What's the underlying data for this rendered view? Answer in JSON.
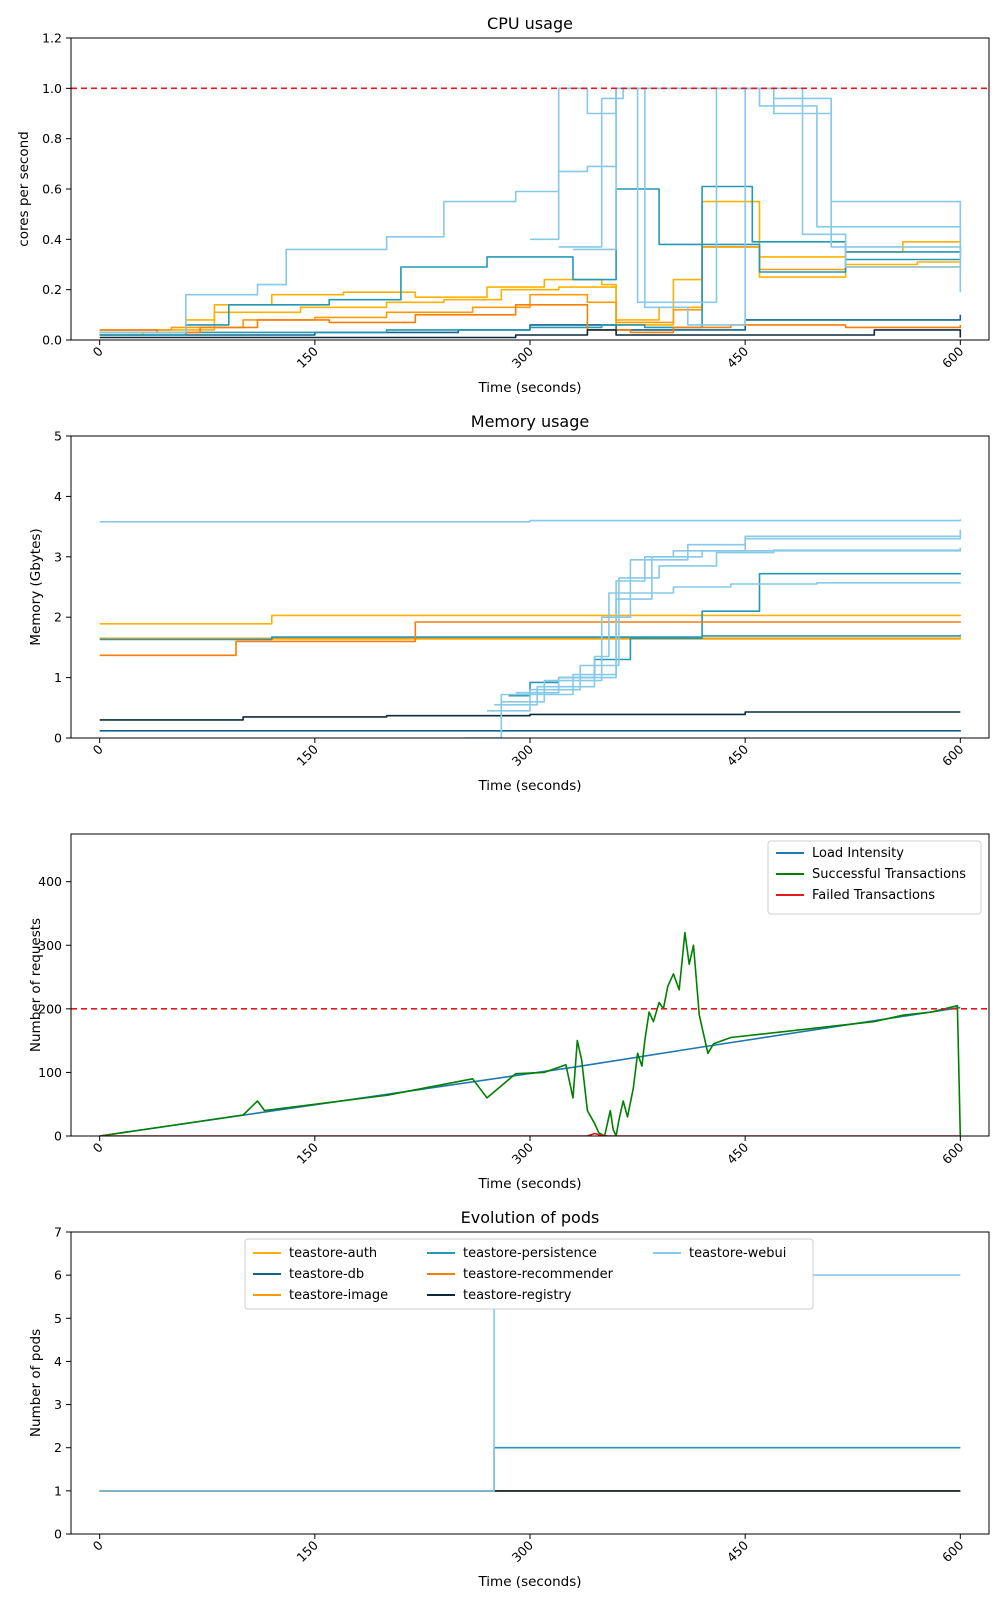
{
  "colors": {
    "teastore-auth": "#ffb000",
    "teastore-db": "#11648a",
    "teastore-image": "#ff9a0a",
    "teastore-persistence": "#2399b5",
    "teastore-recommender": "#fb7d07",
    "teastore-registry": "#0b2a3d",
    "teastore-webui": "#86c9e8",
    "threshold": "#e31a1c",
    "load": "#1f77b4",
    "success": "#008000",
    "failed": "#e31a1c"
  },
  "chart_data": [
    {
      "id": "cpu",
      "type": "line",
      "title": "CPU usage",
      "xlabel": "Time (seconds)",
      "ylabel": "cores per second",
      "xlim": [
        -20,
        620
      ],
      "ylim": [
        0,
        1.2
      ],
      "xticks": [
        0,
        150,
        300,
        450,
        600
      ],
      "xtick_labels": [
        "0",
        "150",
        "300",
        "450",
        "600"
      ],
      "yticks": [
        0,
        0.2,
        0.4,
        0.6,
        0.8,
        1.0,
        1.2
      ],
      "ytick_labels": [
        "0.0",
        "0.2",
        "0.4",
        "0.6",
        "0.8",
        "1.0",
        "1.2"
      ],
      "hline": 1.0,
      "step": true,
      "series": [
        {
          "name": "teastore-auth",
          "x": [
            0,
            30,
            60,
            80,
            120,
            170,
            220,
            270,
            310,
            350,
            360,
            400,
            420,
            460,
            520,
            560,
            600
          ],
          "y": [
            0.02,
            0.03,
            0.08,
            0.14,
            0.18,
            0.19,
            0.17,
            0.21,
            0.24,
            0.22,
            0.06,
            0.24,
            0.55,
            0.33,
            0.35,
            0.39,
            0.41
          ]
        },
        {
          "name": "teastore-auth",
          "x": [
            0,
            40,
            80,
            140,
            200,
            240,
            280,
            320,
            360,
            390,
            420,
            460,
            520,
            570,
            600
          ],
          "y": [
            0.03,
            0.04,
            0.11,
            0.13,
            0.15,
            0.16,
            0.2,
            0.21,
            0.08,
            0.13,
            0.37,
            0.25,
            0.3,
            0.31,
            0.33
          ]
        },
        {
          "name": "teastore-db",
          "x": [
            0,
            60,
            150,
            250,
            300,
            360,
            450,
            600
          ],
          "y": [
            0.02,
            0.02,
            0.03,
            0.04,
            0.06,
            0.04,
            0.08,
            0.1
          ]
        },
        {
          "name": "teastore-image",
          "x": [
            0,
            50,
            100,
            150,
            200,
            260,
            300,
            340,
            360,
            400,
            420,
            460,
            520,
            600
          ],
          "y": [
            0.04,
            0.05,
            0.08,
            0.09,
            0.11,
            0.13,
            0.18,
            0.15,
            0.07,
            0.12,
            0.37,
            0.28,
            0.29,
            0.3
          ]
        },
        {
          "name": "teastore-persistence",
          "x": [
            0,
            60,
            90,
            160,
            210,
            270,
            330,
            360,
            390,
            420,
            455,
            520,
            600
          ],
          "y": [
            0.02,
            0.06,
            0.14,
            0.16,
            0.29,
            0.33,
            0.24,
            0.6,
            0.38,
            0.61,
            0.39,
            0.35,
            0.37
          ]
        },
        {
          "name": "teastore-persistence",
          "x": [
            0,
            100,
            200,
            300,
            350,
            380,
            420,
            460,
            520,
            600
          ],
          "y": [
            0.03,
            0.03,
            0.04,
            0.05,
            0.06,
            0.05,
            0.38,
            0.27,
            0.32,
            0.38
          ]
        },
        {
          "name": "teastore-recommender",
          "x": [
            0,
            40,
            70,
            110,
            160,
            220,
            290,
            340,
            370,
            400,
            440,
            520,
            600
          ],
          "y": [
            0.04,
            0.03,
            0.05,
            0.08,
            0.07,
            0.1,
            0.14,
            0.04,
            0.03,
            0.05,
            0.06,
            0.05,
            0.06
          ]
        },
        {
          "name": "teastore-registry",
          "x": [
            0,
            100,
            200,
            290,
            340,
            360,
            410,
            480,
            540,
            600
          ],
          "y": [
            0.01,
            0.01,
            0.01,
            0.02,
            0.04,
            0.02,
            0.02,
            0.02,
            0.04,
            0.01
          ]
        },
        {
          "name": "teastore-webui",
          "x": [
            0,
            60,
            110,
            130,
            170,
            200,
            240,
            290,
            320,
            340,
            360,
            370,
            400,
            430,
            470,
            510,
            600
          ],
          "y": [
            0.03,
            0.18,
            0.22,
            0.36,
            0.36,
            0.41,
            0.55,
            0.59,
            0.67,
            0.69,
            1.0,
            1.0,
            1.0,
            1.0,
            0.96,
            0.55,
            0.27
          ]
        },
        {
          "name": "teastore-webui",
          "x": [
            300,
            320,
            340,
            360,
            420,
            460,
            500,
            600
          ],
          "y": [
            0.4,
            1.0,
            0.9,
            1.0,
            1.0,
            0.93,
            0.45,
            0.3
          ]
        },
        {
          "name": "teastore-webui",
          "x": [
            320,
            350,
            365,
            375,
            430,
            470,
            510,
            600
          ],
          "y": [
            0.37,
            0.96,
            1.0,
            0.15,
            1.0,
            0.9,
            0.37,
            0.36
          ]
        },
        {
          "name": "teastore-webui",
          "x": [
            330,
            360,
            380,
            410,
            450,
            490,
            520,
            600
          ],
          "y": [
            0.36,
            1.0,
            0.13,
            0.06,
            1.0,
            0.42,
            0.29,
            0.19
          ]
        }
      ]
    },
    {
      "id": "memory",
      "type": "line",
      "title": "Memory usage",
      "xlabel": "Time (seconds)",
      "ylabel": "Memory (Gbytes)",
      "xlim": [
        -20,
        620
      ],
      "ylim": [
        0,
        5
      ],
      "xticks": [
        0,
        150,
        300,
        450,
        600
      ],
      "xtick_labels": [
        "0",
        "150",
        "300",
        "450",
        "600"
      ],
      "yticks": [
        0,
        1,
        2,
        3,
        4,
        5
      ],
      "ytick_labels": [
        "0",
        "1",
        "2",
        "3",
        "4",
        "5"
      ],
      "step": true,
      "series": [
        {
          "name": "teastore-auth",
          "x": [
            0,
            120,
            600
          ],
          "y": [
            1.89,
            2.03,
            2.04
          ]
        },
        {
          "name": "teastore-auth",
          "x": [
            0,
            600
          ],
          "y": [
            1.64,
            1.67
          ]
        },
        {
          "name": "teastore-db",
          "x": [
            0,
            600
          ],
          "y": [
            0.12,
            0.13
          ]
        },
        {
          "name": "teastore-image",
          "x": [
            0,
            600
          ],
          "y": [
            1.65,
            1.65
          ]
        },
        {
          "name": "teastore-persistence",
          "x": [
            0,
            120,
            420,
            600
          ],
          "y": [
            1.63,
            1.67,
            1.69,
            1.71
          ]
        },
        {
          "name": "teastore-persistence",
          "x": [
            285,
            300,
            320,
            345,
            370,
            420,
            460,
            600
          ],
          "y": [
            0.7,
            0.92,
            1.0,
            1.3,
            1.65,
            2.1,
            2.72,
            2.73
          ]
        },
        {
          "name": "teastore-recommender",
          "x": [
            0,
            95,
            220,
            600
          ],
          "y": [
            1.37,
            1.6,
            1.92,
            1.93
          ]
        },
        {
          "name": "teastore-registry",
          "x": [
            0,
            100,
            200,
            300,
            450,
            600
          ],
          "y": [
            0.3,
            0.35,
            0.37,
            0.39,
            0.43,
            0.43
          ]
        },
        {
          "name": "teastore-webui",
          "x": [
            0,
            300,
            600
          ],
          "y": [
            3.58,
            3.6,
            3.62
          ]
        },
        {
          "name": "teastore-webui",
          "x": [
            255,
            280,
            330,
            360,
            380,
            400,
            450,
            600
          ],
          "y": [
            0.0,
            0.72,
            1.05,
            2.6,
            3.0,
            3.1,
            3.34,
            3.45
          ]
        },
        {
          "name": "teastore-webui",
          "x": [
            270,
            300,
            335,
            362,
            390,
            430,
            470,
            600
          ],
          "y": [
            0.45,
            0.8,
            1.2,
            2.65,
            2.85,
            3.07,
            3.11,
            3.15
          ]
        },
        {
          "name": "teastore-webui",
          "x": [
            275,
            305,
            345,
            355,
            400,
            440,
            500,
            600
          ],
          "y": [
            0.55,
            0.85,
            1.35,
            2.4,
            2.5,
            2.55,
            2.57,
            2.58
          ]
        },
        {
          "name": "teastore-webui",
          "x": [
            280,
            310,
            350,
            370,
            410,
            450,
            600
          ],
          "y": [
            0.6,
            0.95,
            2.0,
            2.95,
            3.2,
            3.3,
            3.35
          ]
        },
        {
          "name": "teastore-webui",
          "x": [
            290,
            320,
            360,
            385,
            420,
            600
          ],
          "y": [
            0.75,
            1.0,
            2.3,
            3.0,
            3.1,
            3.12
          ]
        }
      ]
    },
    {
      "id": "requests",
      "type": "line",
      "title": "",
      "xlabel": "Time (seconds)",
      "ylabel": "Number of requests",
      "xlim": [
        -20,
        620
      ],
      "ylim": [
        0,
        475
      ],
      "xticks": [
        0,
        150,
        300,
        450,
        600
      ],
      "xtick_labels": [
        "0",
        "150",
        "300",
        "450",
        "600"
      ],
      "yticks": [
        0,
        100,
        200,
        300,
        400
      ],
      "ytick_labels": [
        "0",
        "100",
        "200",
        "300",
        "400"
      ],
      "hline": 200,
      "legend": {
        "placement": "top-right",
        "entries": [
          "Load Intensity",
          "Successful Transactions",
          "Failed Transactions"
        ]
      },
      "series": [
        {
          "name": "Load Intensity",
          "x": [
            0,
            330,
            420,
            600
          ],
          "y": [
            0,
            108,
            140,
            202
          ]
        },
        {
          "name": "Successful Transactions",
          "x": [
            0,
            100,
            110,
            115,
            200,
            260,
            270,
            290,
            310,
            325,
            330,
            333,
            336,
            340,
            345,
            348,
            352,
            356,
            358,
            360,
            362,
            365,
            368,
            372,
            375,
            378,
            380,
            383,
            386,
            390,
            393,
            396,
            400,
            404,
            408,
            411,
            414,
            418,
            421,
            424,
            428,
            440,
            460,
            500,
            540,
            560,
            580,
            598,
            600
          ],
          "y": [
            0,
            33,
            55,
            40,
            64,
            90,
            60,
            98,
            100,
            112,
            60,
            150,
            120,
            40,
            20,
            5,
            0,
            40,
            10,
            0,
            25,
            55,
            30,
            75,
            130,
            110,
            150,
            195,
            180,
            210,
            200,
            235,
            255,
            230,
            320,
            270,
            300,
            190,
            160,
            130,
            145,
            155,
            160,
            170,
            180,
            190,
            195,
            205,
            0
          ]
        },
        {
          "name": "Failed Transactions",
          "x": [
            0,
            340,
            345,
            350,
            355,
            600
          ],
          "y": [
            0,
            0,
            4,
            1,
            0,
            0
          ]
        }
      ]
    },
    {
      "id": "pods",
      "type": "line",
      "title": "Evolution of pods",
      "xlabel": "Time (seconds)",
      "ylabel": "Number of pods",
      "xlim": [
        -20,
        620
      ],
      "ylim": [
        0,
        7
      ],
      "xticks": [
        0,
        150,
        300,
        450,
        600
      ],
      "xtick_labels": [
        "0",
        "150",
        "300",
        "450",
        "600"
      ],
      "yticks": [
        0,
        1,
        2,
        3,
        4,
        5,
        6,
        7
      ],
      "ytick_labels": [
        "0",
        "1",
        "2",
        "3",
        "4",
        "5",
        "6",
        "7"
      ],
      "step": true,
      "legend": {
        "placement": "upper-center",
        "columns": 3,
        "entries": [
          "teastore-auth",
          "teastore-db",
          "teastore-image",
          "teastore-persistence",
          "teastore-recommender",
          "teastore-registry",
          "teastore-webui"
        ]
      },
      "series": [
        {
          "name": "teastore-auth",
          "x": [
            0,
            600
          ],
          "y": [
            1,
            1
          ]
        },
        {
          "name": "teastore-db",
          "x": [
            0,
            600
          ],
          "y": [
            1,
            1
          ]
        },
        {
          "name": "teastore-image",
          "x": [
            0,
            600
          ],
          "y": [
            1,
            1
          ]
        },
        {
          "name": "teastore-persistence",
          "x": [
            0,
            275,
            600
          ],
          "y": [
            1,
            2,
            2
          ]
        },
        {
          "name": "teastore-recommender",
          "x": [
            0,
            600
          ],
          "y": [
            1,
            1
          ]
        },
        {
          "name": "teastore-registry",
          "x": [
            0,
            600
          ],
          "y": [
            1,
            1
          ]
        },
        {
          "name": "teastore-webui",
          "x": [
            0,
            275,
            600
          ],
          "y": [
            1,
            6,
            6
          ]
        }
      ]
    }
  ]
}
